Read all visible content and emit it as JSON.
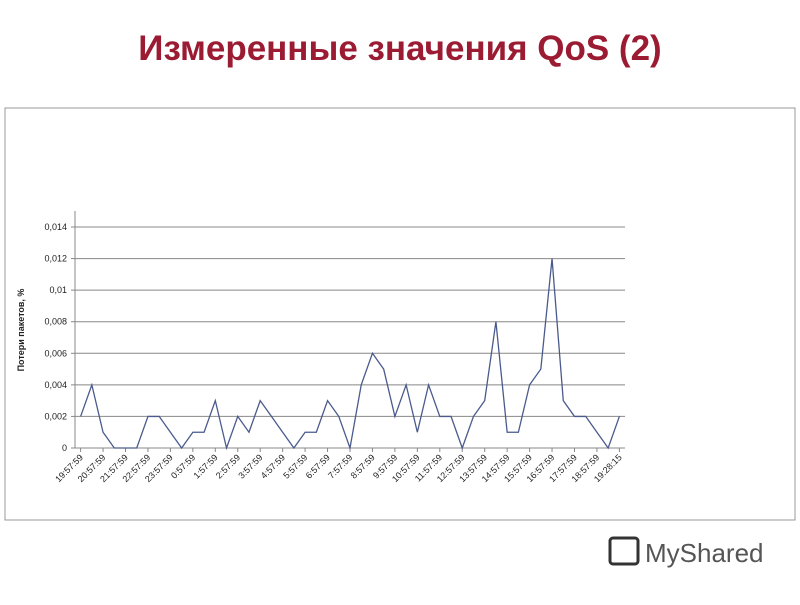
{
  "title": "Измеренные значения QoS (2)",
  "watermark": "MyShared",
  "chart_data": {
    "type": "line",
    "ylabel": "Потери пакетов, %",
    "categories": [
      "19:57:59",
      null,
      "20:57:59",
      null,
      "21:57:59",
      null,
      "22:57:59",
      null,
      "23:57:59",
      null,
      "0:57:59",
      null,
      "1:57:59",
      null,
      "2:57:59",
      null,
      "3:57:59",
      null,
      "4:57:59",
      null,
      "5:57:59",
      null,
      "6:57:59",
      null,
      "7:57:59",
      null,
      "8:57:59",
      null,
      "9:57:59",
      null,
      "10:57:59",
      null,
      "11:57:59",
      null,
      "12:57:59",
      null,
      "13:57:59",
      null,
      "14:57:59",
      null,
      "15:57:59",
      null,
      "16:57:59",
      null,
      "17:57:59",
      null,
      "18:57:59",
      null,
      "19:28:15"
    ],
    "values": [
      0.002,
      0.004,
      0.001,
      0,
      0,
      0,
      0.002,
      0.002,
      0.001,
      0,
      0.001,
      0.001,
      0.003,
      0,
      0.002,
      0.001,
      0.003,
      0.002,
      0.001,
      0,
      0.001,
      0.001,
      0.003,
      0.002,
      0,
      0.004,
      0.006,
      0.005,
      0.002,
      0.004,
      0.001,
      0.004,
      0.002,
      0.002,
      0,
      0.002,
      0.003,
      0.008,
      0.001,
      0.001,
      0.004,
      0.005,
      0.012,
      0.003,
      0.002,
      0.002,
      0.001,
      0,
      0.002
    ],
    "color": "#4a5a8c",
    "ylim": [
      0,
      0.014
    ],
    "yticks": [
      0,
      {
        "value": 0.002,
        "label": "0,002"
      },
      {
        "value": 0.004,
        "label": "0,004"
      },
      {
        "value": 0.006,
        "label": "0,006"
      },
      {
        "value": 0.008,
        "label": "0,008"
      },
      {
        "value": 0.01,
        "label": "0,01"
      },
      {
        "value": 0.012,
        "label": "0,012"
      },
      {
        "value": 0.014,
        "label": "0,014"
      }
    ],
    "grid": true
  }
}
